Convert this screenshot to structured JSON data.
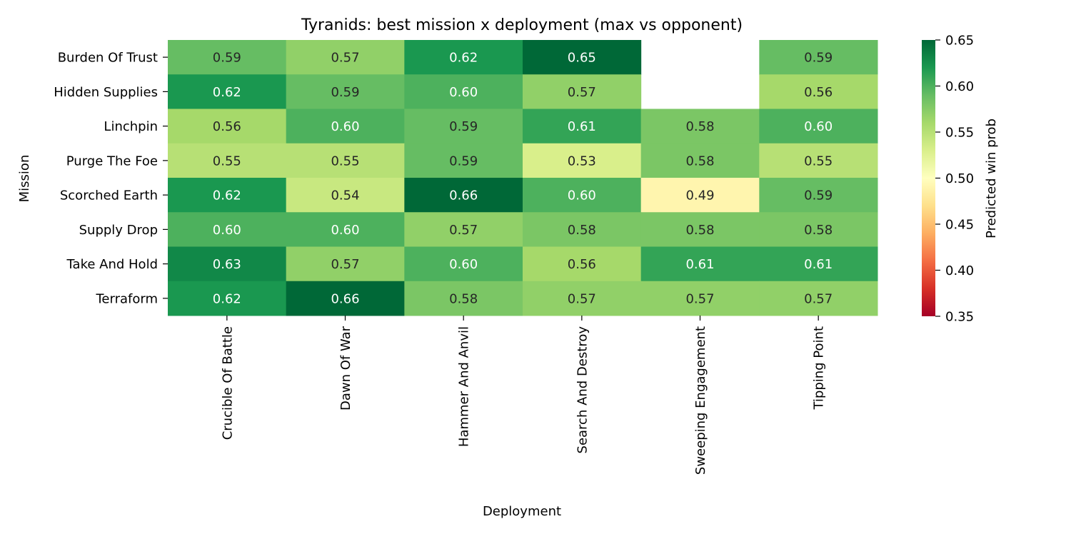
{
  "chart_data": {
    "type": "heatmap",
    "title": "Tyranids: best mission x deployment (max vs opponent)",
    "xlabel": "Deployment",
    "ylabel": "Mission",
    "x_categories": [
      "Crucible Of Battle",
      "Dawn Of War",
      "Hammer And Anvil",
      "Search And Destroy",
      "Sweeping Engagement",
      "Tipping Point"
    ],
    "y_categories": [
      "Burden Of Trust",
      "Hidden Supplies",
      "Linchpin",
      "Purge The Foe",
      "Scorched Earth",
      "Supply Drop",
      "Take And Hold",
      "Terraform"
    ],
    "values": [
      [
        0.59,
        0.57,
        0.62,
        0.65,
        null,
        0.59
      ],
      [
        0.62,
        0.59,
        0.6,
        0.57,
        null,
        0.56
      ],
      [
        0.56,
        0.6,
        0.59,
        0.61,
        0.58,
        0.6
      ],
      [
        0.55,
        0.55,
        0.59,
        0.53,
        0.58,
        0.55
      ],
      [
        0.62,
        0.54,
        0.66,
        0.6,
        0.49,
        0.59
      ],
      [
        0.6,
        0.6,
        0.57,
        0.58,
        0.58,
        0.58
      ],
      [
        0.63,
        0.57,
        0.6,
        0.56,
        0.61,
        0.61
      ],
      [
        0.62,
        0.66,
        0.58,
        0.57,
        0.57,
        0.57
      ]
    ],
    "colormap": "RdYlGn",
    "vmin": 0.35,
    "vmax": 0.65,
    "colorbar": {
      "label": "Predicted win prob",
      "ticks": [
        "0.35",
        "0.40",
        "0.45",
        "0.50",
        "0.55",
        "0.60",
        "0.65"
      ]
    }
  }
}
